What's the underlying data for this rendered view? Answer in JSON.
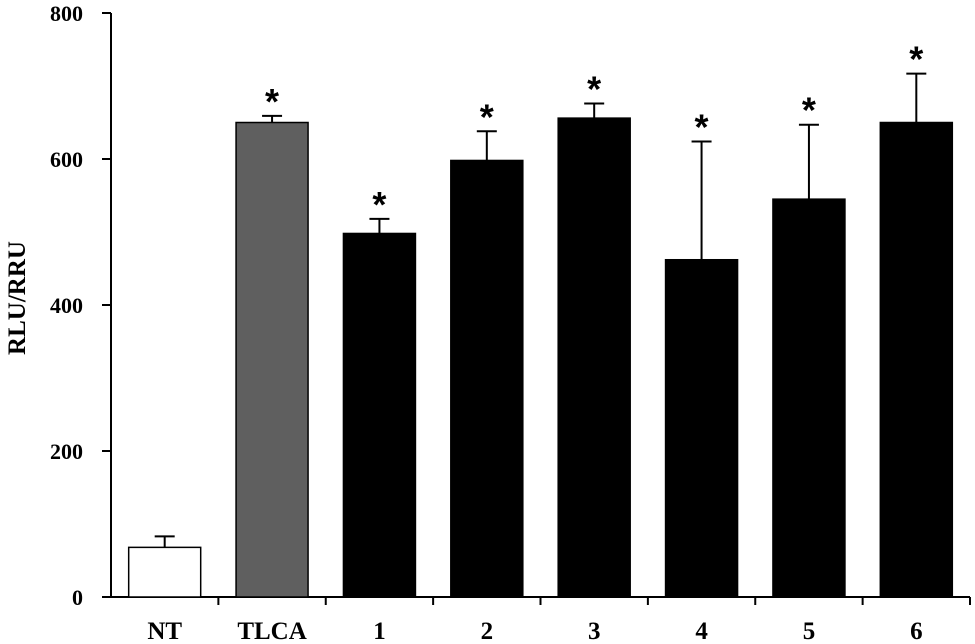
{
  "chart_data": {
    "type": "bar",
    "title": "",
    "xlabel": "",
    "ylabel": "RLU/RRU",
    "ylim": [
      0,
      800
    ],
    "yticks": [
      0,
      200,
      400,
      600,
      800
    ],
    "grid": false,
    "categories": [
      "NT",
      "TLCA",
      "1",
      "2",
      "3",
      "4",
      "5",
      "6"
    ],
    "values": [
      68,
      650,
      498,
      598,
      656,
      462,
      545,
      650
    ],
    "errors": [
      15,
      9,
      20,
      40,
      20,
      162,
      102,
      67
    ],
    "significance": [
      "",
      "*",
      "*",
      "*",
      "*",
      "*",
      "*",
      "*"
    ],
    "colors": [
      "#ffffff",
      "#5f5f5f",
      "#000000",
      "#000000",
      "#000000",
      "#000000",
      "#000000",
      "#000000"
    ]
  }
}
